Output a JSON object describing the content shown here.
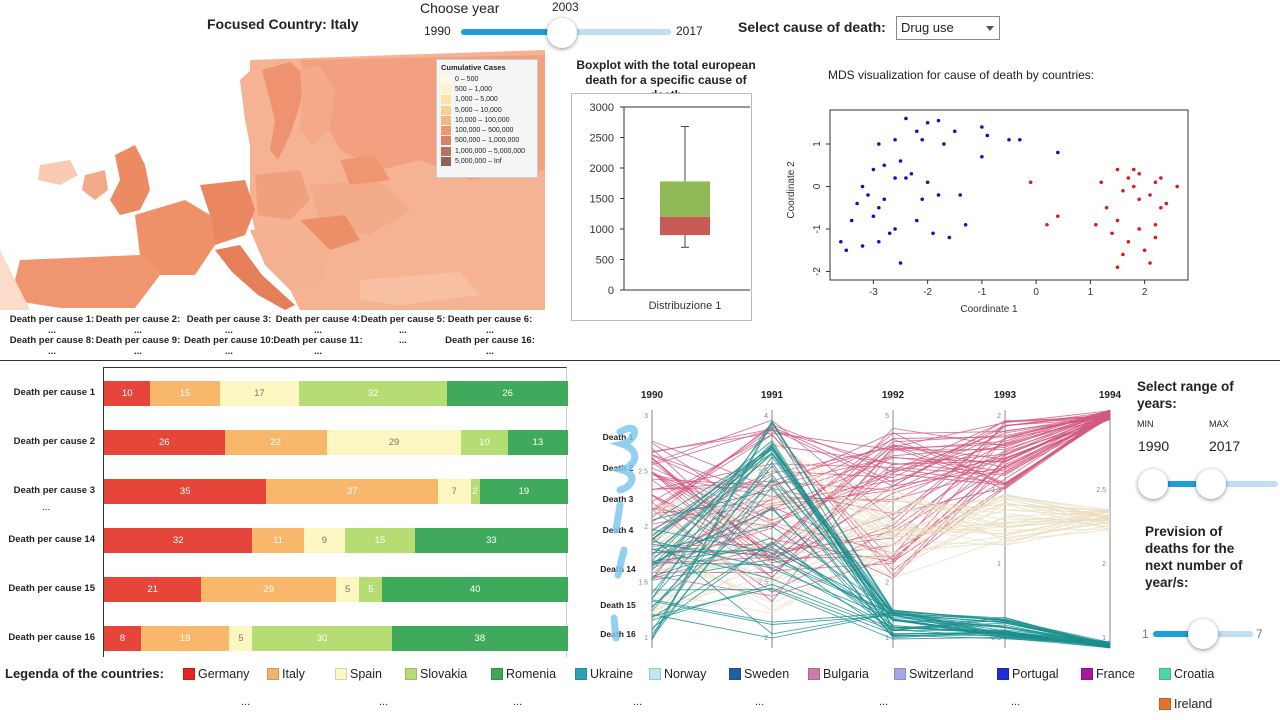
{
  "header": {
    "focused_country": "Focused Country: Italy",
    "choose_year_label": "Choose year",
    "year_min": "1990",
    "year_max": "2017",
    "year_current": "2003",
    "year_progress": 0.48,
    "cause_label": "Select cause of death:",
    "cause_selected": "Drug use"
  },
  "map": {
    "legend_title": "Cumulative Cases",
    "legend_items": [
      {
        "label": "0 – 500",
        "color": "#fef9e0"
      },
      {
        "label": "500 – 1,000",
        "color": "#fdf1c7"
      },
      {
        "label": "1,000 – 5,000",
        "color": "#fde2a8"
      },
      {
        "label": "5,000 – 10,000",
        "color": "#f9cf94"
      },
      {
        "label": "10,000 – 100,000",
        "color": "#f4b682"
      },
      {
        "label": "100,000 – 500,000",
        "color": "#e99a6e"
      },
      {
        "label": "500,000 – 1,000,000",
        "color": "#d88166"
      },
      {
        "label": "1,000,000 – 5,000,000",
        "color": "#b8735f"
      },
      {
        "label": "5,000,000 – Inf",
        "color": "#8f6457"
      }
    ],
    "cause_cells": [
      "Death per cause 1: ...",
      "Death per cause 2: ...",
      "Death per cause 3: ...",
      "Death per cause 4: ...",
      "Death per cause 5: ...",
      "Death per cause 6: ...",
      "Death per cause 8: ...",
      "Death per cause 9: ...",
      "Death per cause 10: ...",
      "Death per cause 11: ...",
      "...",
      "Death per cause 16: ..."
    ]
  },
  "boxplot": {
    "title": "Boxplot with the total european death for a specific cause of death",
    "xlabel": "Distribuzione 1"
  },
  "mds": {
    "title": "MDS visualization for cause of death by countries:",
    "xlabel": "Coordinate 1",
    "ylabel": "Coordinate 2"
  },
  "stacked": {
    "ellipsis": "..."
  },
  "parallel": {
    "years": [
      "1990",
      "1991",
      "1992",
      "1993",
      "1994"
    ],
    "axis_labels": [
      "Death 1",
      "Death 2",
      "Death 3",
      "Death 4",
      "Death 14",
      "Death 15",
      "Death 16"
    ]
  },
  "countries_legend": {
    "title": "Legenda of the countries:",
    "items": [
      {
        "name": "Germany",
        "color": "#e8221d"
      },
      {
        "name": "Italy",
        "color": "#f5b26b"
      },
      {
        "name": "Spain",
        "color": "#fdf9c2"
      },
      {
        "name": "Slovakia",
        "color": "#b5dc76"
      },
      {
        "name": "Romenia",
        "color": "#3fa65a"
      },
      {
        "name": "Ukraine",
        "color": "#2ea3b0"
      },
      {
        "name": "Norway",
        "color": "#bfe8ee"
      },
      {
        "name": "Sweden",
        "color": "#1e5fa8"
      },
      {
        "name": "Bulgaria",
        "color": "#cc7aa9"
      },
      {
        "name": "Switzerland",
        "color": "#a3a7e8"
      },
      {
        "name": "Portugal",
        "color": "#1f2ed4"
      },
      {
        "name": "France",
        "color": "#a4199e"
      },
      {
        "name": "Croatia",
        "color": "#4fd6a8"
      },
      {
        "name": "Ireland",
        "color": "#e2742f"
      }
    ],
    "ellipsis": "..."
  },
  "range_panel": {
    "title": "Select range of years:",
    "min_label": "MIN",
    "max_label": "MAX",
    "min_value": "1990",
    "max_value": "2017",
    "prevision_title": "Prevision of deaths for the next number of year/s:",
    "prevision_min": "1",
    "prevision_max": "7",
    "prevision_value": 4
  },
  "chart_data": [
    {
      "type": "bar",
      "orientation": "horizontal-stacked-percent",
      "categories": [
        "Death per cause 1",
        "Death per cause 2",
        "Death per cause 3",
        "Death per cause 14",
        "Death per cause 15",
        "Death per cause 16"
      ],
      "series": [
        {
          "color": "#e6463a",
          "values": [
            10,
            26,
            35,
            32,
            21,
            8
          ]
        },
        {
          "color": "#f9b76b",
          "values": [
            15,
            22,
            37,
            11,
            29,
            19
          ]
        },
        {
          "color": "#fcf6c0",
          "values": [
            17,
            29,
            7,
            9,
            5,
            5
          ]
        },
        {
          "color": "#b6dc74",
          "values": [
            32,
            10,
            2,
            15,
            5,
            30
          ]
        },
        {
          "color": "#3faa5c",
          "values": [
            26,
            13,
            19,
            33,
            40,
            38
          ]
        }
      ]
    },
    {
      "type": "box",
      "categories": [
        "Distribuzione 1"
      ],
      "ylim": [
        0,
        3000
      ],
      "yticks": [
        0,
        500,
        1000,
        1500,
        2000,
        2500,
        3000
      ],
      "whisker_low": 700,
      "q1": 900,
      "median": 1200,
      "q3": 1780,
      "whisker_high": 2680
    },
    {
      "type": "scatter",
      "xlim": [
        -3.8,
        2.8
      ],
      "ylim": [
        -2.2,
        1.8
      ],
      "xticks": [
        -3,
        -2,
        -1,
        0,
        1,
        2
      ],
      "yticks": [
        -2,
        -1,
        0,
        1
      ],
      "series": [
        {
          "color": "#1010c0",
          "points": [
            [
              -2.4,
              1.6
            ],
            [
              -2.0,
              1.5
            ],
            [
              -1.8,
              1.55
            ],
            [
              -1.5,
              1.3
            ],
            [
              -1.0,
              1.4
            ],
            [
              -0.9,
              1.2
            ],
            [
              -0.3,
              1.1
            ],
            [
              -2.2,
              1.3
            ],
            [
              -2.6,
              1.1
            ],
            [
              -2.9,
              1.0
            ],
            [
              -2.1,
              1.1
            ],
            [
              -1.7,
              1.0
            ],
            [
              -1.0,
              0.7
            ],
            [
              -0.5,
              1.1
            ],
            [
              0.4,
              0.8
            ],
            [
              -2.5,
              0.6
            ],
            [
              -2.8,
              0.5
            ],
            [
              -3.0,
              0.4
            ],
            [
              -2.3,
              0.3
            ],
            [
              -2.0,
              0.1
            ],
            [
              -2.6,
              0.2
            ],
            [
              -3.2,
              0.0
            ],
            [
              -3.1,
              -0.2
            ],
            [
              -2.8,
              -0.3
            ],
            [
              -2.4,
              0.2
            ],
            [
              -1.8,
              -0.2
            ],
            [
              -1.4,
              -0.2
            ],
            [
              -2.9,
              -0.5
            ],
            [
              -3.3,
              -0.4
            ],
            [
              -3.0,
              -0.7
            ],
            [
              -2.2,
              -0.8
            ],
            [
              -2.6,
              -1.0
            ],
            [
              -3.4,
              -0.8
            ],
            [
              -3.6,
              -1.3
            ],
            [
              -3.2,
              -1.4
            ],
            [
              -2.9,
              -1.3
            ],
            [
              -2.5,
              -1.8
            ],
            [
              -1.9,
              -1.1
            ],
            [
              -1.3,
              -0.9
            ],
            [
              -1.6,
              -1.2
            ],
            [
              -3.5,
              -1.5
            ],
            [
              -2.7,
              -1.1
            ],
            [
              -2.1,
              -0.3
            ]
          ]
        },
        {
          "color": "#e01818",
          "points": [
            [
              -0.1,
              0.1
            ],
            [
              1.5,
              0.4
            ],
            [
              1.9,
              0.3
            ],
            [
              2.2,
              0.1
            ],
            [
              2.3,
              0.2
            ],
            [
              1.8,
              0.0
            ],
            [
              1.6,
              -0.1
            ],
            [
              2.1,
              -0.2
            ],
            [
              2.3,
              -0.5
            ],
            [
              2.2,
              -0.9
            ],
            [
              1.9,
              -1.0
            ],
            [
              1.5,
              -0.8
            ],
            [
              1.4,
              -1.1
            ],
            [
              1.7,
              -1.3
            ],
            [
              2.0,
              -1.5
            ],
            [
              2.4,
              -0.4
            ],
            [
              1.3,
              -0.5
            ],
            [
              1.1,
              -0.9
            ],
            [
              0.4,
              -0.7
            ],
            [
              0.2,
              -0.9
            ],
            [
              1.6,
              -1.6
            ],
            [
              2.6,
              0.0
            ],
            [
              1.2,
              0.1
            ],
            [
              1.8,
              0.4
            ],
            [
              2.1,
              -1.8
            ],
            [
              1.5,
              -1.9
            ],
            [
              1.9,
              -0.3
            ],
            [
              2.2,
              -1.2
            ],
            [
              1.7,
              0.2
            ]
          ]
        }
      ]
    },
    {
      "type": "line",
      "style": "parallel-coordinates",
      "x": [
        "1990",
        "1991",
        "1992",
        "1993",
        "1994"
      ],
      "axis_ticks": [
        [
          "1",
          "1.5",
          "2",
          "2.5",
          "3"
        ],
        [
          "2",
          "2.5",
          "3",
          "3.5",
          "4"
        ],
        [
          "1",
          "2",
          "3",
          "4",
          "5"
        ],
        [
          "0.5",
          "1",
          "1.5",
          "2"
        ],
        [
          "1",
          "2",
          "2.5",
          "3"
        ]
      ]
    }
  ]
}
